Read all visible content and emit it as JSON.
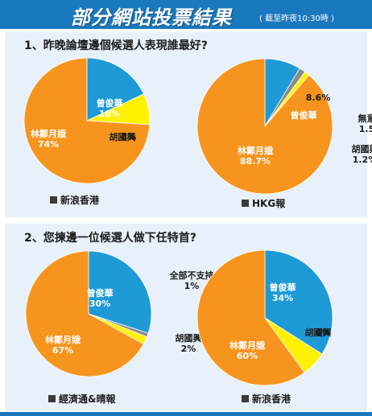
{
  "header": {
    "title": "部分網站投票結果",
    "note": "( 截至昨夜10:30時 )"
  },
  "questions": [
    "1、昨晚論壇邊個候選人表現誰最好?",
    "2、您揀邊一位候選人做下任特首?"
  ],
  "colors": {
    "lam": "#f7941d",
    "tsang": "#1e9ad6",
    "woo": "#fff200",
    "other": "#8a8a8a",
    "header": "#1a78be"
  },
  "chart_data": [
    {
      "type": "pie",
      "source": "新浪香港",
      "slices": [
        {
          "name": "林鄭月娥",
          "value": 74,
          "label": "74%",
          "color": "#f7941d"
        },
        {
          "name": "曾俊華",
          "value": 18,
          "label": "18%",
          "color": "#1e9ad6"
        },
        {
          "name": "胡國興",
          "value": 8,
          "label": "8%",
          "color": "#fff200"
        }
      ]
    },
    {
      "type": "pie",
      "source": "HKG報",
      "slices": [
        {
          "name": "林鄭月娥",
          "value": 88.7,
          "label": "88.7%",
          "color": "#f7941d"
        },
        {
          "name": "曾俊華",
          "value": 8.6,
          "label": "8.6%",
          "color": "#1e9ad6"
        },
        {
          "name": "無意見",
          "value": 1.5,
          "label": "1.5%",
          "color": "#8a8a8a"
        },
        {
          "name": "胡國興",
          "value": 1.2,
          "label": "1.2%",
          "color": "#fff200"
        }
      ]
    },
    {
      "type": "pie",
      "source": "經濟通&晴報",
      "slices": [
        {
          "name": "林鄭月娥",
          "value": 67,
          "label": "67%",
          "color": "#f7941d"
        },
        {
          "name": "曾俊華",
          "value": 30,
          "label": "30%",
          "color": "#1e9ad6"
        },
        {
          "name": "全部不支持",
          "value": 1,
          "label": "1%",
          "color": "#8a8a8a"
        },
        {
          "name": "胡國興",
          "value": 2,
          "label": "2%",
          "color": "#fff200"
        }
      ]
    },
    {
      "type": "pie",
      "source": "新浪香港",
      "slices": [
        {
          "name": "林鄭月娥",
          "value": 60,
          "label": "60%",
          "color": "#f7941d"
        },
        {
          "name": "曾俊華",
          "value": 34,
          "label": "34%",
          "color": "#1e9ad6"
        },
        {
          "name": "胡國興",
          "value": 6,
          "label": "6%",
          "color": "#fff200"
        }
      ]
    }
  ]
}
